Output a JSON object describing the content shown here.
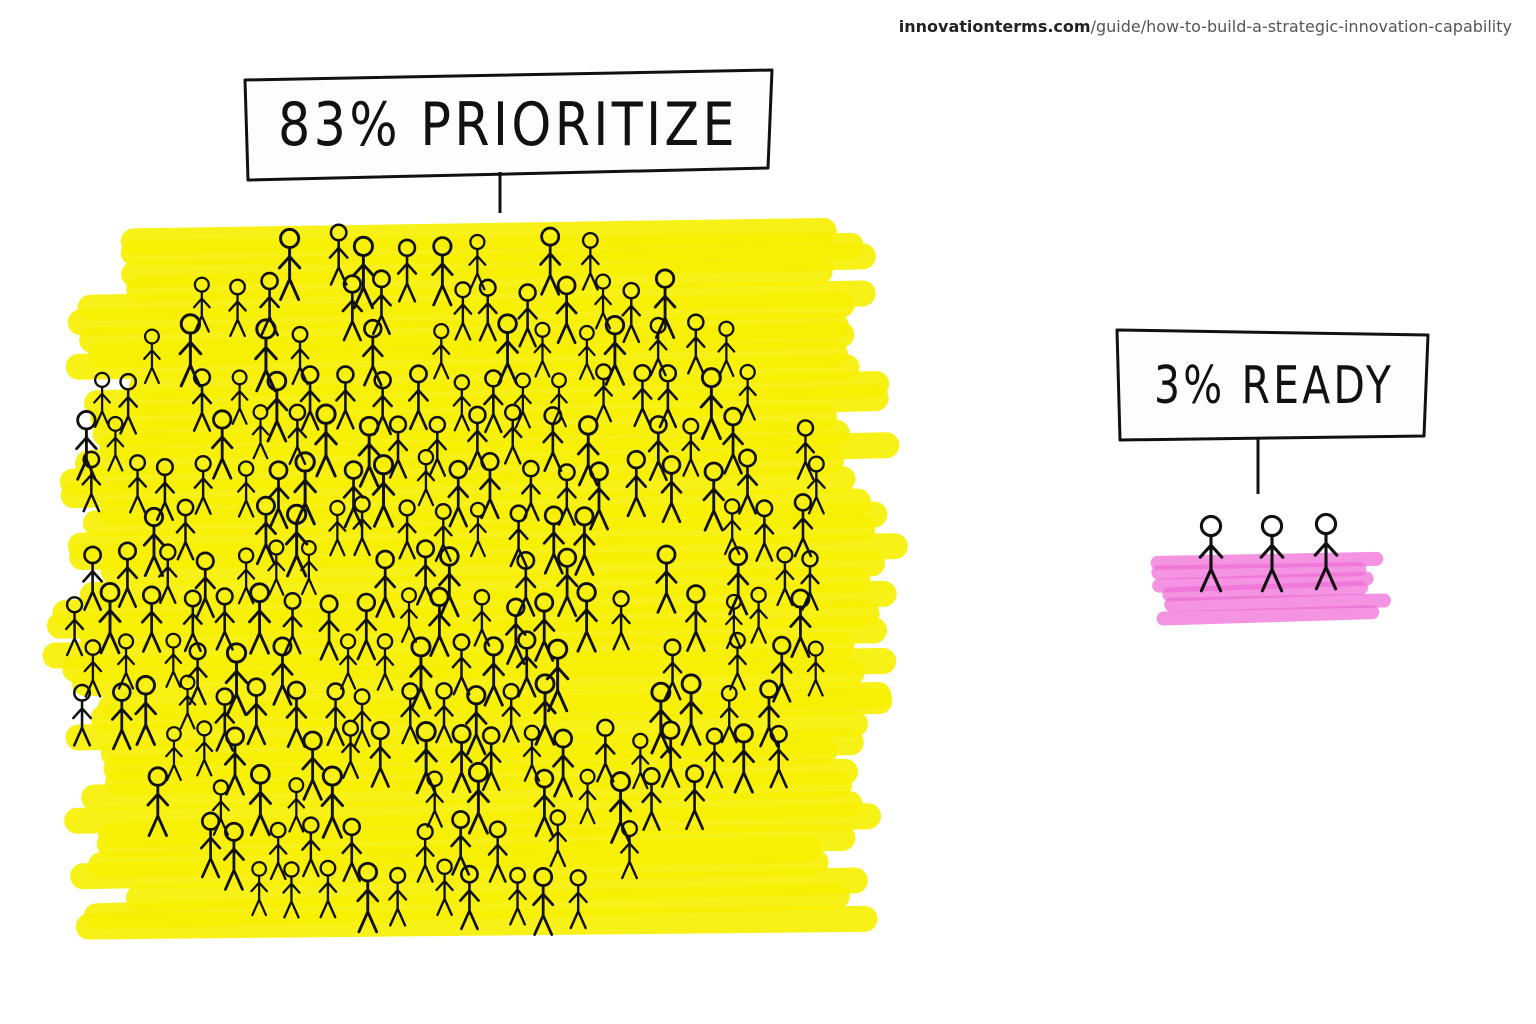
{
  "source": {
    "domain": "innovationterms.com",
    "path": "/guide/how-to-build-a-strategic-innovation-capability"
  },
  "groups": [
    {
      "label": "83% PRIORITIZE"
    },
    {
      "label": "3% READY"
    }
  ]
}
